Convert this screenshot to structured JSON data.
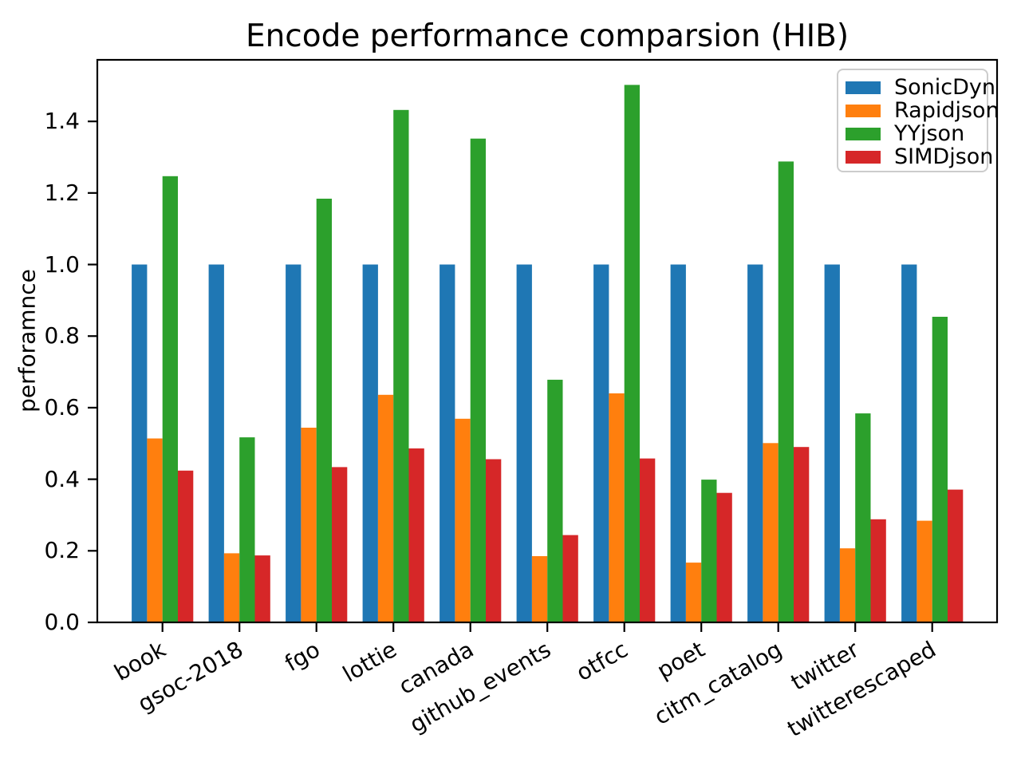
{
  "chart_data": {
    "type": "bar",
    "title": "Encode performance comparsion (HIB)",
    "ylabel": "perforamnce",
    "xlabel": "",
    "categories": [
      "book",
      "gsoc-2018",
      "fgo",
      "lottie",
      "canada",
      "github_events",
      "otfcc",
      "poet",
      "citm_catalog",
      "twitter",
      "twitterescaped"
    ],
    "series": [
      {
        "name": "SonicDyn",
        "color": "#1f77b4",
        "values": [
          1.0,
          1.0,
          1.0,
          1.0,
          1.0,
          1.0,
          1.0,
          1.0,
          1.0,
          1.0,
          1.0
        ]
      },
      {
        "name": "Rapidjson",
        "color": "#ff7f0e",
        "values": [
          0.514,
          0.193,
          0.544,
          0.636,
          0.569,
          0.185,
          0.64,
          0.167,
          0.501,
          0.207,
          0.284
        ]
      },
      {
        "name": "YYjson",
        "color": "#2ca02c",
        "values": [
          1.247,
          0.517,
          1.184,
          1.432,
          1.352,
          0.678,
          1.502,
          0.399,
          1.288,
          0.584,
          0.854
        ]
      },
      {
        "name": "SIMDjson",
        "color": "#d62728",
        "values": [
          0.424,
          0.187,
          0.434,
          0.486,
          0.456,
          0.244,
          0.458,
          0.362,
          0.49,
          0.288,
          0.371
        ]
      }
    ],
    "yticks": [
      "0.0",
      "0.2",
      "0.4",
      "0.6",
      "0.8",
      "1.0",
      "1.2",
      "1.4"
    ],
    "ylim": [
      0,
      1.572
    ],
    "grid": false,
    "legend_position": "upper right",
    "xtick_rotation_deg": 30,
    "axis_color": "#000000"
  }
}
